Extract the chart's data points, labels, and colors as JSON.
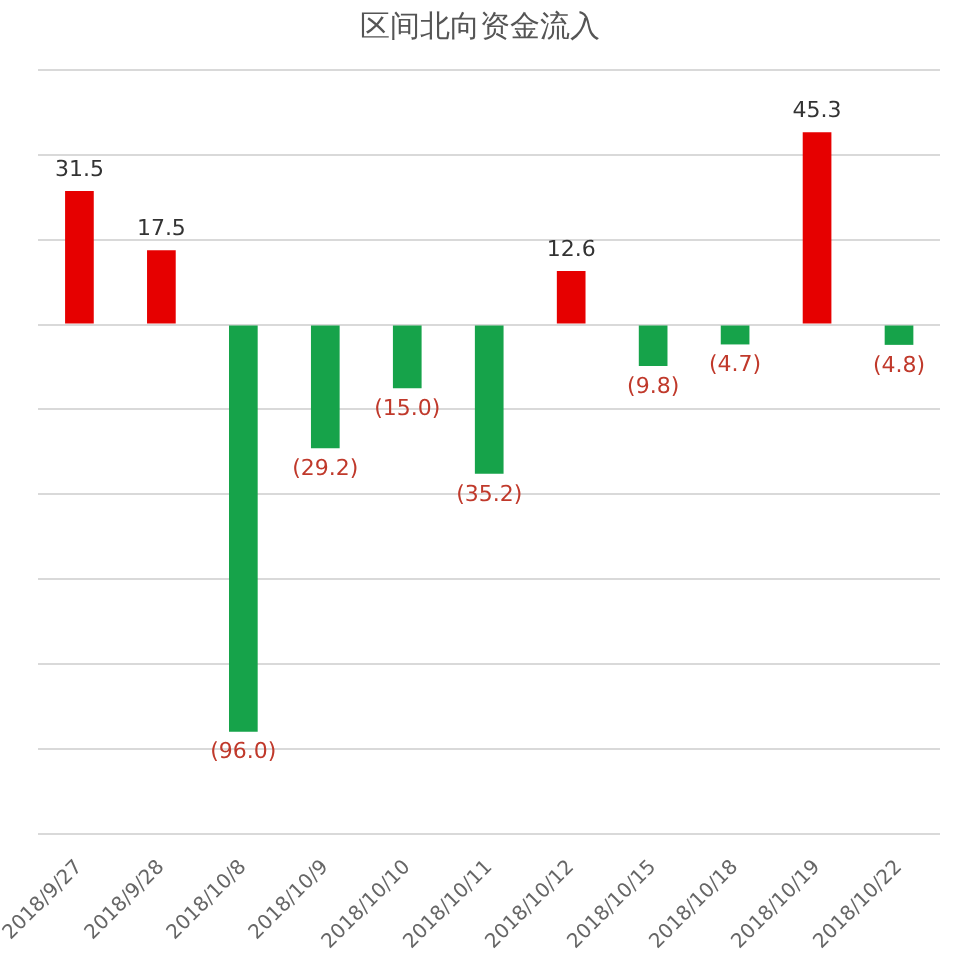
{
  "chart_data": {
    "type": "bar",
    "title": "区间北向资金流入",
    "categories": [
      "2018/9/27",
      "2018/9/28",
      "2018/10/8",
      "2018/10/9",
      "2018/10/10",
      "2018/10/11",
      "2018/10/12",
      "2018/10/15",
      "2018/10/18",
      "2018/10/19",
      "2018/10/22"
    ],
    "values": [
      31.5,
      17.5,
      -96.0,
      -29.2,
      -15.0,
      -35.2,
      12.6,
      -9.8,
      -4.7,
      45.3,
      -4.8
    ],
    "value_labels": [
      "31.5",
      "17.5",
      "(96.0)",
      "(29.2)",
      "(15.0)",
      "(35.2)",
      "12.6",
      "(9.8)",
      "(4.7)",
      "45.3",
      "(4.8)"
    ],
    "colors": [
      "#e60000",
      "#e60000",
      "#16a34a",
      "#16a34a",
      "#16a34a",
      "#16a34a",
      "#e60000",
      "#16a34a",
      "#16a34a",
      "#e60000",
      "#16a34a"
    ],
    "ylim": [
      -120,
      60
    ],
    "yticks": [
      {
        "value": -120,
        "label": null
      },
      {
        "value": -100,
        "label": null
      },
      {
        "value": -80,
        "label": null
      },
      {
        "value": -60,
        "label": null
      },
      {
        "value": -40,
        "label": null
      },
      {
        "value": -20,
        "label": null
      },
      {
        "value": 0,
        "label": null
      },
      {
        "value": 20,
        "label": null
      },
      {
        "value": 40,
        "label": null
      },
      {
        "value": 60,
        "label": null
      }
    ],
    "grid": "y",
    "tick_labels": "x"
  }
}
